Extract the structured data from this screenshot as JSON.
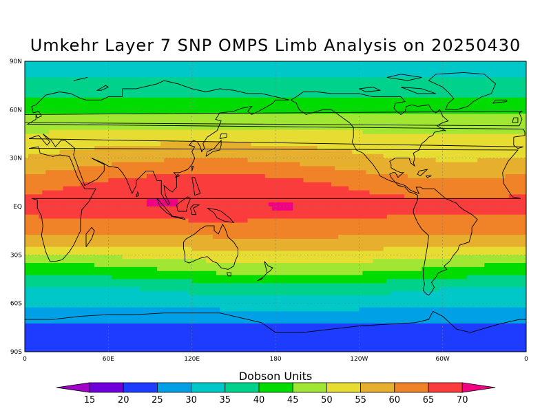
{
  "title": "Umkehr Layer 7 SNP OMPS Limb Analysis on 20250430",
  "lat_ticks": [
    {
      "label": "90N",
      "value": 90
    },
    {
      "label": "60N",
      "value": 60
    },
    {
      "label": "30N",
      "value": 30
    },
    {
      "label": "EQ",
      "value": 0
    },
    {
      "label": "30S",
      "value": -30
    },
    {
      "label": "60S",
      "value": -60
    },
    {
      "label": "90S",
      "value": -90
    }
  ],
  "lon_ticks": [
    {
      "label": "0",
      "value": 0
    },
    {
      "label": "60E",
      "value": 60
    },
    {
      "label": "120E",
      "value": 120
    },
    {
      "label": "180",
      "value": 180
    },
    {
      "label": "120W",
      "value": 240
    },
    {
      "label": "60W",
      "value": 300
    },
    {
      "label": "0",
      "value": 360
    }
  ],
  "colorbar": {
    "title": "Dobson Units",
    "levels": [
      15,
      20,
      25,
      30,
      35,
      40,
      45,
      50,
      55,
      60,
      65,
      70
    ],
    "colors": [
      "#a000c8",
      "#6e00dc",
      "#1e3cff",
      "#00a0e6",
      "#00c8c8",
      "#00d28c",
      "#00dc00",
      "#a0e632",
      "#e6dc32",
      "#e6af2d",
      "#f08228",
      "#fa3c3c",
      "#f00082"
    ]
  },
  "chart_data": {
    "type": "heatmap",
    "title": "Umkehr Layer 7 SNP OMPS Limb Analysis on 20250430",
    "units": "Dobson Units",
    "xlim": [
      0,
      360
    ],
    "ylim": [
      -90,
      90
    ],
    "grid": true,
    "zonal_profile": [
      {
        "lat": 90,
        "value": 33
      },
      {
        "lat": 82,
        "value": 34
      },
      {
        "lat": 75,
        "value": 37
      },
      {
        "lat": 68,
        "value": 40
      },
      {
        "lat": 60,
        "value": 44
      },
      {
        "lat": 52,
        "value": 47
      },
      {
        "lat": 45,
        "value": 51
      },
      {
        "lat": 38,
        "value": 54
      },
      {
        "lat": 30,
        "value": 57
      },
      {
        "lat": 22,
        "value": 61
      },
      {
        "lat": 14,
        "value": 65
      },
      {
        "lat": 5,
        "value": 67
      },
      {
        "lat": 0,
        "value": 67
      },
      {
        "lat": -5,
        "value": 66
      },
      {
        "lat": -12,
        "value": 63
      },
      {
        "lat": -18,
        "value": 60
      },
      {
        "lat": -24,
        "value": 56
      },
      {
        "lat": -30,
        "value": 52
      },
      {
        "lat": -36,
        "value": 47
      },
      {
        "lat": -42,
        "value": 43
      },
      {
        "lat": -50,
        "value": 36
      },
      {
        "lat": -58,
        "value": 33
      },
      {
        "lat": -65,
        "value": 29
      },
      {
        "lat": -72,
        "value": 25
      },
      {
        "lat": -80,
        "value": 23
      },
      {
        "lat": -90,
        "value": 22
      }
    ],
    "maxima": [
      {
        "lon": 185,
        "lat": 0,
        "value": 71
      },
      {
        "lon": 98,
        "lat": 2,
        "value": 71
      }
    ]
  }
}
